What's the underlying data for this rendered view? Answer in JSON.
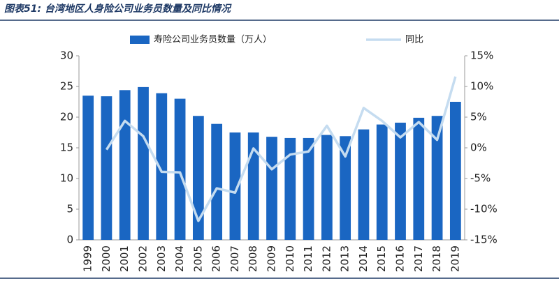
{
  "chart_data": {
    "type": "bar_line",
    "title": "图表51: 台湾地区人身险公司业务员数量及同比情况",
    "categories": [
      "1999",
      "2000",
      "2001",
      "2002",
      "2003",
      "2004",
      "2005",
      "2006",
      "2007",
      "2008",
      "2009",
      "2010",
      "2011",
      "2012",
      "2013",
      "2014",
      "2015",
      "2016",
      "2017",
      "2018",
      "2019"
    ],
    "series": [
      {
        "name": "寿险公司业务员数量（万人）",
        "type": "bar",
        "color": "#1a66c2",
        "values": [
          23.5,
          23.4,
          24.4,
          24.9,
          23.9,
          23.0,
          20.2,
          18.9,
          17.5,
          17.5,
          16.8,
          16.6,
          16.6,
          17.1,
          16.9,
          18.0,
          18.8,
          19.1,
          19.9,
          20.2,
          22.5
        ]
      },
      {
        "name": "同比",
        "type": "line",
        "axis": "y2",
        "color": "#c5dcf0",
        "values": [
          null,
          -0.3,
          4.4,
          1.9,
          -3.9,
          -4.0,
          -11.9,
          -6.6,
          -7.3,
          -0.1,
          -3.5,
          -1.1,
          -0.6,
          3.6,
          -1.4,
          6.5,
          4.4,
          1.7,
          4.2,
          1.3,
          11.6
        ]
      }
    ],
    "ylim": [
      0,
      30
    ],
    "yticks": [
      0,
      5,
      10,
      15,
      20,
      25,
      30
    ],
    "y2lim": [
      -15,
      15
    ],
    "y2ticks": [
      {
        "value": -15,
        "label": "-15%"
      },
      {
        "value": -10,
        "label": "-10%"
      },
      {
        "value": -5,
        "label": "-5%"
      },
      {
        "value": 0,
        "label": "0%"
      },
      {
        "value": 5,
        "label": "5%"
      },
      {
        "value": 10,
        "label": "10%"
      },
      {
        "value": 15,
        "label": "15%"
      }
    ],
    "legend": "top"
  }
}
